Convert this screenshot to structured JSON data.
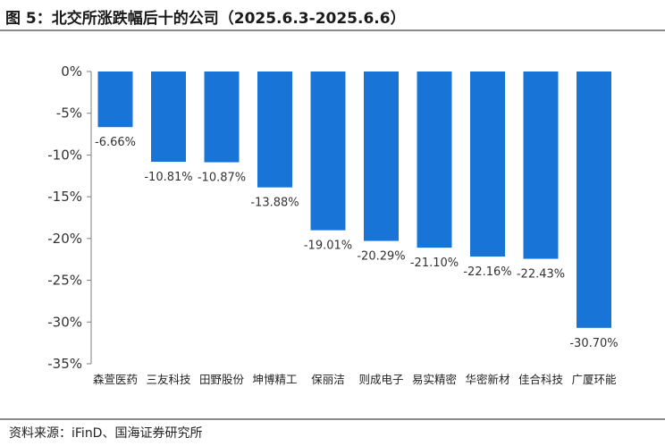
{
  "figure": {
    "title": "图 5：北交所涨跌幅后十的公司（2025.6.3-2025.6.6）",
    "source": "资料来源：iFinD、国海证券研究所"
  },
  "chart_data": {
    "type": "bar",
    "title": "",
    "xlabel": "",
    "ylabel": "",
    "categories": [
      "森萱医药",
      "三友科技",
      "田野股份",
      "坤博精工",
      "保丽洁",
      "则成电子",
      "易实精密",
      "华密新材",
      "佳合科技",
      "广厦环能"
    ],
    "values": [
      -6.66,
      -10.81,
      -10.87,
      -13.88,
      -19.01,
      -20.29,
      -21.1,
      -22.16,
      -22.43,
      -30.7
    ],
    "data_labels": [
      "-6.66%",
      "-10.81%",
      "-10.87%",
      "-13.88%",
      "-19.01%",
      "-20.29%",
      "-21.10%",
      "-22.16%",
      "-22.43%",
      "-30.70%"
    ],
    "ylim": [
      -35,
      0
    ],
    "yticks": [
      0,
      -5,
      -10,
      -15,
      -20,
      -25,
      -30,
      -35
    ],
    "ytick_labels": [
      "0%",
      "-5%",
      "-10%",
      "-15%",
      "-20%",
      "-25%",
      "-30%",
      "-35%"
    ],
    "grid": false,
    "legend": "none",
    "bar_color": "#1874D6"
  }
}
